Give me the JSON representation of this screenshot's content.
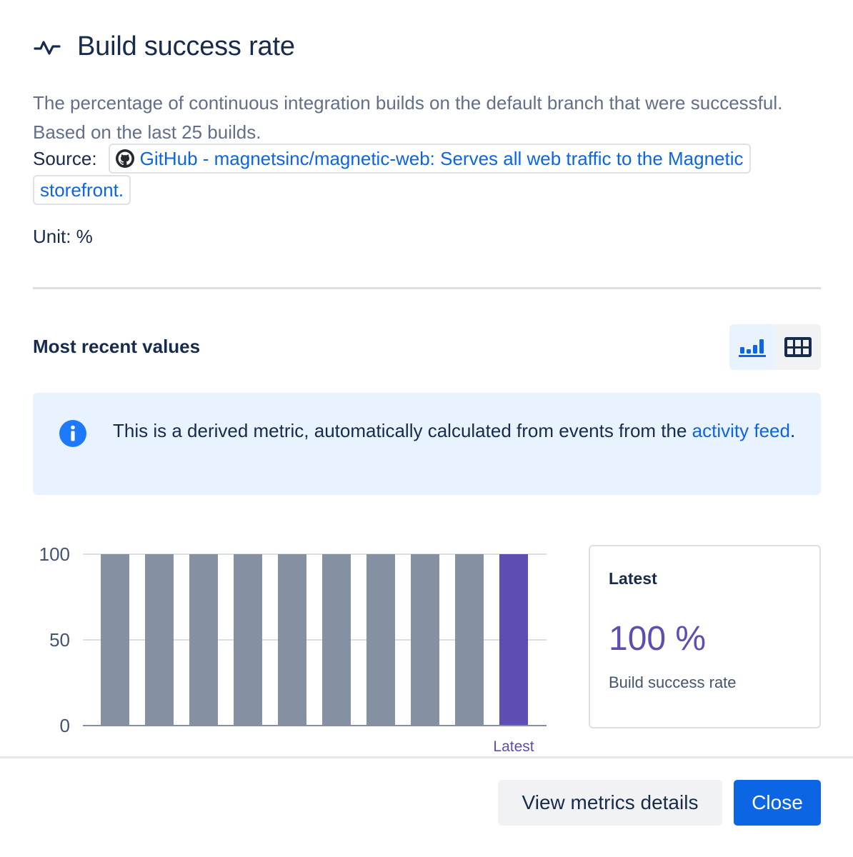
{
  "header": {
    "title": "Build success rate",
    "icon": "activity-pulse-icon"
  },
  "description": "The percentage of continuous integration builds on the default branch that were successful. Based on the last 25 builds.",
  "source": {
    "label": "Source:",
    "link_text": "GitHub - magnetsinc/magnetic-web: Serves all web traffic to the Magnetic storefront.",
    "icon": "github-icon"
  },
  "unit": "Unit: %",
  "section": {
    "title": "Most recent values",
    "view_toggle": [
      "bar-chart-icon",
      "table-icon"
    ],
    "active_view": "bar-chart"
  },
  "info": {
    "text": "This is a derived metric, automatically calculated from events from the ",
    "link": "activity feed",
    "suffix": "."
  },
  "chart_data": {
    "type": "bar",
    "categories": [
      "",
      "",
      "",
      "",
      "",
      "",
      "",
      "",
      "",
      "Latest"
    ],
    "values": [
      100,
      100,
      100,
      100,
      100,
      100,
      100,
      100,
      100,
      100
    ],
    "yticks": [
      "0",
      "50",
      "100"
    ],
    "ylim": [
      0,
      100
    ],
    "grid": true,
    "colors": {
      "bar": "#8590a2",
      "latest": "#5e4db2"
    }
  },
  "latest_card": {
    "title": "Latest",
    "value": "100 %",
    "subtitle": "Build success rate"
  },
  "footer": {
    "secondary_label": "View metrics details",
    "primary_label": "Close"
  },
  "colors": {
    "accent": "#0c66e4",
    "latest": "#5e4db2",
    "info_bg": "#e9f2ff"
  }
}
